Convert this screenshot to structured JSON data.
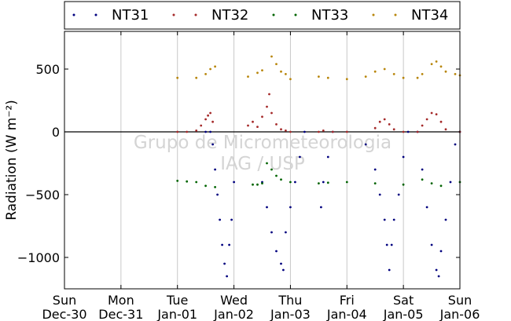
{
  "chart_data": {
    "type": "scatter",
    "ylabel": "Radiation (W m⁻²)",
    "ylim": [
      -1250,
      800
    ],
    "yticks": [
      -1000,
      -500,
      0,
      500
    ],
    "ytick_labels": [
      "−1000",
      "−500",
      "0",
      "500"
    ],
    "x_dates": [
      "2012-12-30",
      "2012-12-31",
      "2013-01-01",
      "2013-01-02",
      "2013-01-03",
      "2013-01-04",
      "2013-01-05",
      "2013-01-06"
    ],
    "x_tick_labels": [
      {
        "day": "Sun",
        "date": "Dec-30"
      },
      {
        "day": "Mon",
        "date": "Dec-31"
      },
      {
        "day": "Tue",
        "date": "Jan-01"
      },
      {
        "day": "Wed",
        "date": "Jan-02"
      },
      {
        "day": "Thu",
        "date": "Jan-03"
      },
      {
        "day": "Fri",
        "date": "Jan-04"
      },
      {
        "day": "Sat",
        "date": "Jan-05"
      },
      {
        "day": "Sun",
        "date": "Jan-06"
      }
    ],
    "vertical_grid": true,
    "zero_line": true,
    "legend_position": "top",
    "watermark": [
      "Grupo de Micrometeorologia",
      "IAG / USP"
    ],
    "series": [
      {
        "name": "NT31",
        "color": "#00007f",
        "points": [
          [
            "2013-01-01T12:00",
            0
          ],
          [
            "2013-01-01T14:00",
            0
          ],
          [
            "2013-01-01T15:00",
            -100
          ],
          [
            "2013-01-01T16:00",
            -300
          ],
          [
            "2013-01-01T17:00",
            -500
          ],
          [
            "2013-01-01T18:00",
            -700
          ],
          [
            "2013-01-01T19:00",
            -900
          ],
          [
            "2013-01-01T20:00",
            -1050
          ],
          [
            "2013-01-01T21:00",
            -1150
          ],
          [
            "2013-01-01T22:00",
            -900
          ],
          [
            "2013-01-01T23:00",
            -700
          ],
          [
            "2013-01-02T00:00",
            -400
          ],
          [
            "2013-01-02T12:00",
            -400
          ],
          [
            "2013-01-02T14:00",
            -600
          ],
          [
            "2013-01-02T16:00",
            -800
          ],
          [
            "2013-01-02T18:00",
            -950
          ],
          [
            "2013-01-02T20:00",
            -1050
          ],
          [
            "2013-01-02T21:00",
            -1100
          ],
          [
            "2013-01-02T22:00",
            -800
          ],
          [
            "2013-01-03T00:00",
            -600
          ],
          [
            "2013-01-03T02:00",
            -400
          ],
          [
            "2013-01-03T04:00",
            -200
          ],
          [
            "2013-01-03T06:00",
            0
          ],
          [
            "2013-01-03T13:00",
            -600
          ],
          [
            "2013-01-03T14:00",
            -400
          ],
          [
            "2013-01-03T16:00",
            -200
          ],
          [
            "2013-01-03T18:00",
            0
          ],
          [
            "2013-01-04T08:00",
            -100
          ],
          [
            "2013-01-04T12:00",
            -300
          ],
          [
            "2013-01-04T14:00",
            -500
          ],
          [
            "2013-01-04T16:00",
            -700
          ],
          [
            "2013-01-04T17:00",
            -900
          ],
          [
            "2013-01-04T18:00",
            -1100
          ],
          [
            "2013-01-04T19:00",
            -900
          ],
          [
            "2013-01-04T20:00",
            -700
          ],
          [
            "2013-01-04T22:00",
            -500
          ],
          [
            "2013-01-05T00:00",
            -200
          ],
          [
            "2013-01-05T02:00",
            0
          ],
          [
            "2013-01-05T06:00",
            0
          ],
          [
            "2013-01-05T08:00",
            -300
          ],
          [
            "2013-01-05T10:00",
            -600
          ],
          [
            "2013-01-05T12:00",
            -900
          ],
          [
            "2013-01-05T14:00",
            -1100
          ],
          [
            "2013-01-05T15:00",
            -1150
          ],
          [
            "2013-01-05T16:00",
            -950
          ],
          [
            "2013-01-05T18:00",
            -700
          ],
          [
            "2013-01-05T20:00",
            -400
          ],
          [
            "2013-01-05T22:00",
            -100
          ],
          [
            "2013-01-06T00:00",
            0
          ]
        ]
      },
      {
        "name": "NT32",
        "color": "#a52a2a",
        "points": [
          [
            "2013-01-01T00:00",
            0
          ],
          [
            "2013-01-01T04:00",
            0
          ],
          [
            "2013-01-01T08:00",
            10
          ],
          [
            "2013-01-01T10:00",
            50
          ],
          [
            "2013-01-01T12:00",
            100
          ],
          [
            "2013-01-01T13:00",
            130
          ],
          [
            "2013-01-01T14:00",
            150
          ],
          [
            "2013-01-01T15:00",
            80
          ],
          [
            "2013-01-02T06:00",
            50
          ],
          [
            "2013-01-02T08:00",
            80
          ],
          [
            "2013-01-02T10:00",
            40
          ],
          [
            "2013-01-02T12:00",
            120
          ],
          [
            "2013-01-02T14:00",
            200
          ],
          [
            "2013-01-02T15:00",
            300
          ],
          [
            "2013-01-02T16:00",
            150
          ],
          [
            "2013-01-02T18:00",
            60
          ],
          [
            "2013-01-02T20:00",
            20
          ],
          [
            "2013-01-02T22:00",
            10
          ],
          [
            "2013-01-03T00:00",
            0
          ],
          [
            "2013-01-03T12:00",
            0
          ],
          [
            "2013-01-03T14:00",
            10
          ],
          [
            "2013-01-03T18:00",
            0
          ],
          [
            "2013-01-04T00:00",
            0
          ],
          [
            "2013-01-04T12:00",
            30
          ],
          [
            "2013-01-04T14:00",
            80
          ],
          [
            "2013-01-04T16:00",
            100
          ],
          [
            "2013-01-04T18:00",
            60
          ],
          [
            "2013-01-04T20:00",
            20
          ],
          [
            "2013-01-05T00:00",
            0
          ],
          [
            "2013-01-05T06:00",
            0
          ],
          [
            "2013-01-05T08:00",
            50
          ],
          [
            "2013-01-05T10:00",
            100
          ],
          [
            "2013-01-05T12:00",
            150
          ],
          [
            "2013-01-05T14:00",
            140
          ],
          [
            "2013-01-05T16:00",
            80
          ],
          [
            "2013-01-05T18:00",
            20
          ],
          [
            "2013-01-06T00:00",
            0
          ]
        ]
      },
      {
        "name": "NT33",
        "color": "#006400",
        "points": [
          [
            "2013-01-01T00:00",
            -390
          ],
          [
            "2013-01-01T04:00",
            -395
          ],
          [
            "2013-01-01T08:00",
            -400
          ],
          [
            "2013-01-01T12:00",
            -430
          ],
          [
            "2013-01-01T16:00",
            -440
          ],
          [
            "2013-01-02T08:00",
            -420
          ],
          [
            "2013-01-02T10:00",
            -420
          ],
          [
            "2013-01-02T12:00",
            -410
          ],
          [
            "2013-01-02T14:00",
            -250
          ],
          [
            "2013-01-02T16:00",
            -300
          ],
          [
            "2013-01-02T18:00",
            -350
          ],
          [
            "2013-01-02T20:00",
            -380
          ],
          [
            "2013-01-03T00:00",
            -400
          ],
          [
            "2013-01-03T12:00",
            -410
          ],
          [
            "2013-01-03T16:00",
            -405
          ],
          [
            "2013-01-04T00:00",
            -400
          ],
          [
            "2013-01-04T12:00",
            -410
          ],
          [
            "2013-01-05T00:00",
            -420
          ],
          [
            "2013-01-05T08:00",
            -380
          ],
          [
            "2013-01-05T12:00",
            -410
          ],
          [
            "2013-01-05T16:00",
            -430
          ],
          [
            "2013-01-06T00:00",
            -400
          ]
        ]
      },
      {
        "name": "NT34",
        "color": "#b8860b",
        "points": [
          [
            "2013-01-01T00:00",
            430
          ],
          [
            "2013-01-01T08:00",
            430
          ],
          [
            "2013-01-01T12:00",
            460
          ],
          [
            "2013-01-01T14:00",
            500
          ],
          [
            "2013-01-01T16:00",
            520
          ],
          [
            "2013-01-02T06:00",
            440
          ],
          [
            "2013-01-02T10:00",
            470
          ],
          [
            "2013-01-02T12:00",
            490
          ],
          [
            "2013-01-02T16:00",
            600
          ],
          [
            "2013-01-02T18:00",
            540
          ],
          [
            "2013-01-02T20:00",
            480
          ],
          [
            "2013-01-02T22:00",
            460
          ],
          [
            "2013-01-03T00:00",
            420
          ],
          [
            "2013-01-03T12:00",
            440
          ],
          [
            "2013-01-03T16:00",
            430
          ],
          [
            "2013-01-04T00:00",
            420
          ],
          [
            "2013-01-04T08:00",
            440
          ],
          [
            "2013-01-04T12:00",
            480
          ],
          [
            "2013-01-04T16:00",
            500
          ],
          [
            "2013-01-04T20:00",
            460
          ],
          [
            "2013-01-05T00:00",
            430
          ],
          [
            "2013-01-05T06:00",
            430
          ],
          [
            "2013-01-05T08:00",
            460
          ],
          [
            "2013-01-05T12:00",
            540
          ],
          [
            "2013-01-05T14:00",
            560
          ],
          [
            "2013-01-05T16:00",
            520
          ],
          [
            "2013-01-05T18:00",
            480
          ],
          [
            "2013-01-05T22:00",
            460
          ],
          [
            "2013-01-06T00:00",
            450
          ]
        ]
      }
    ]
  }
}
